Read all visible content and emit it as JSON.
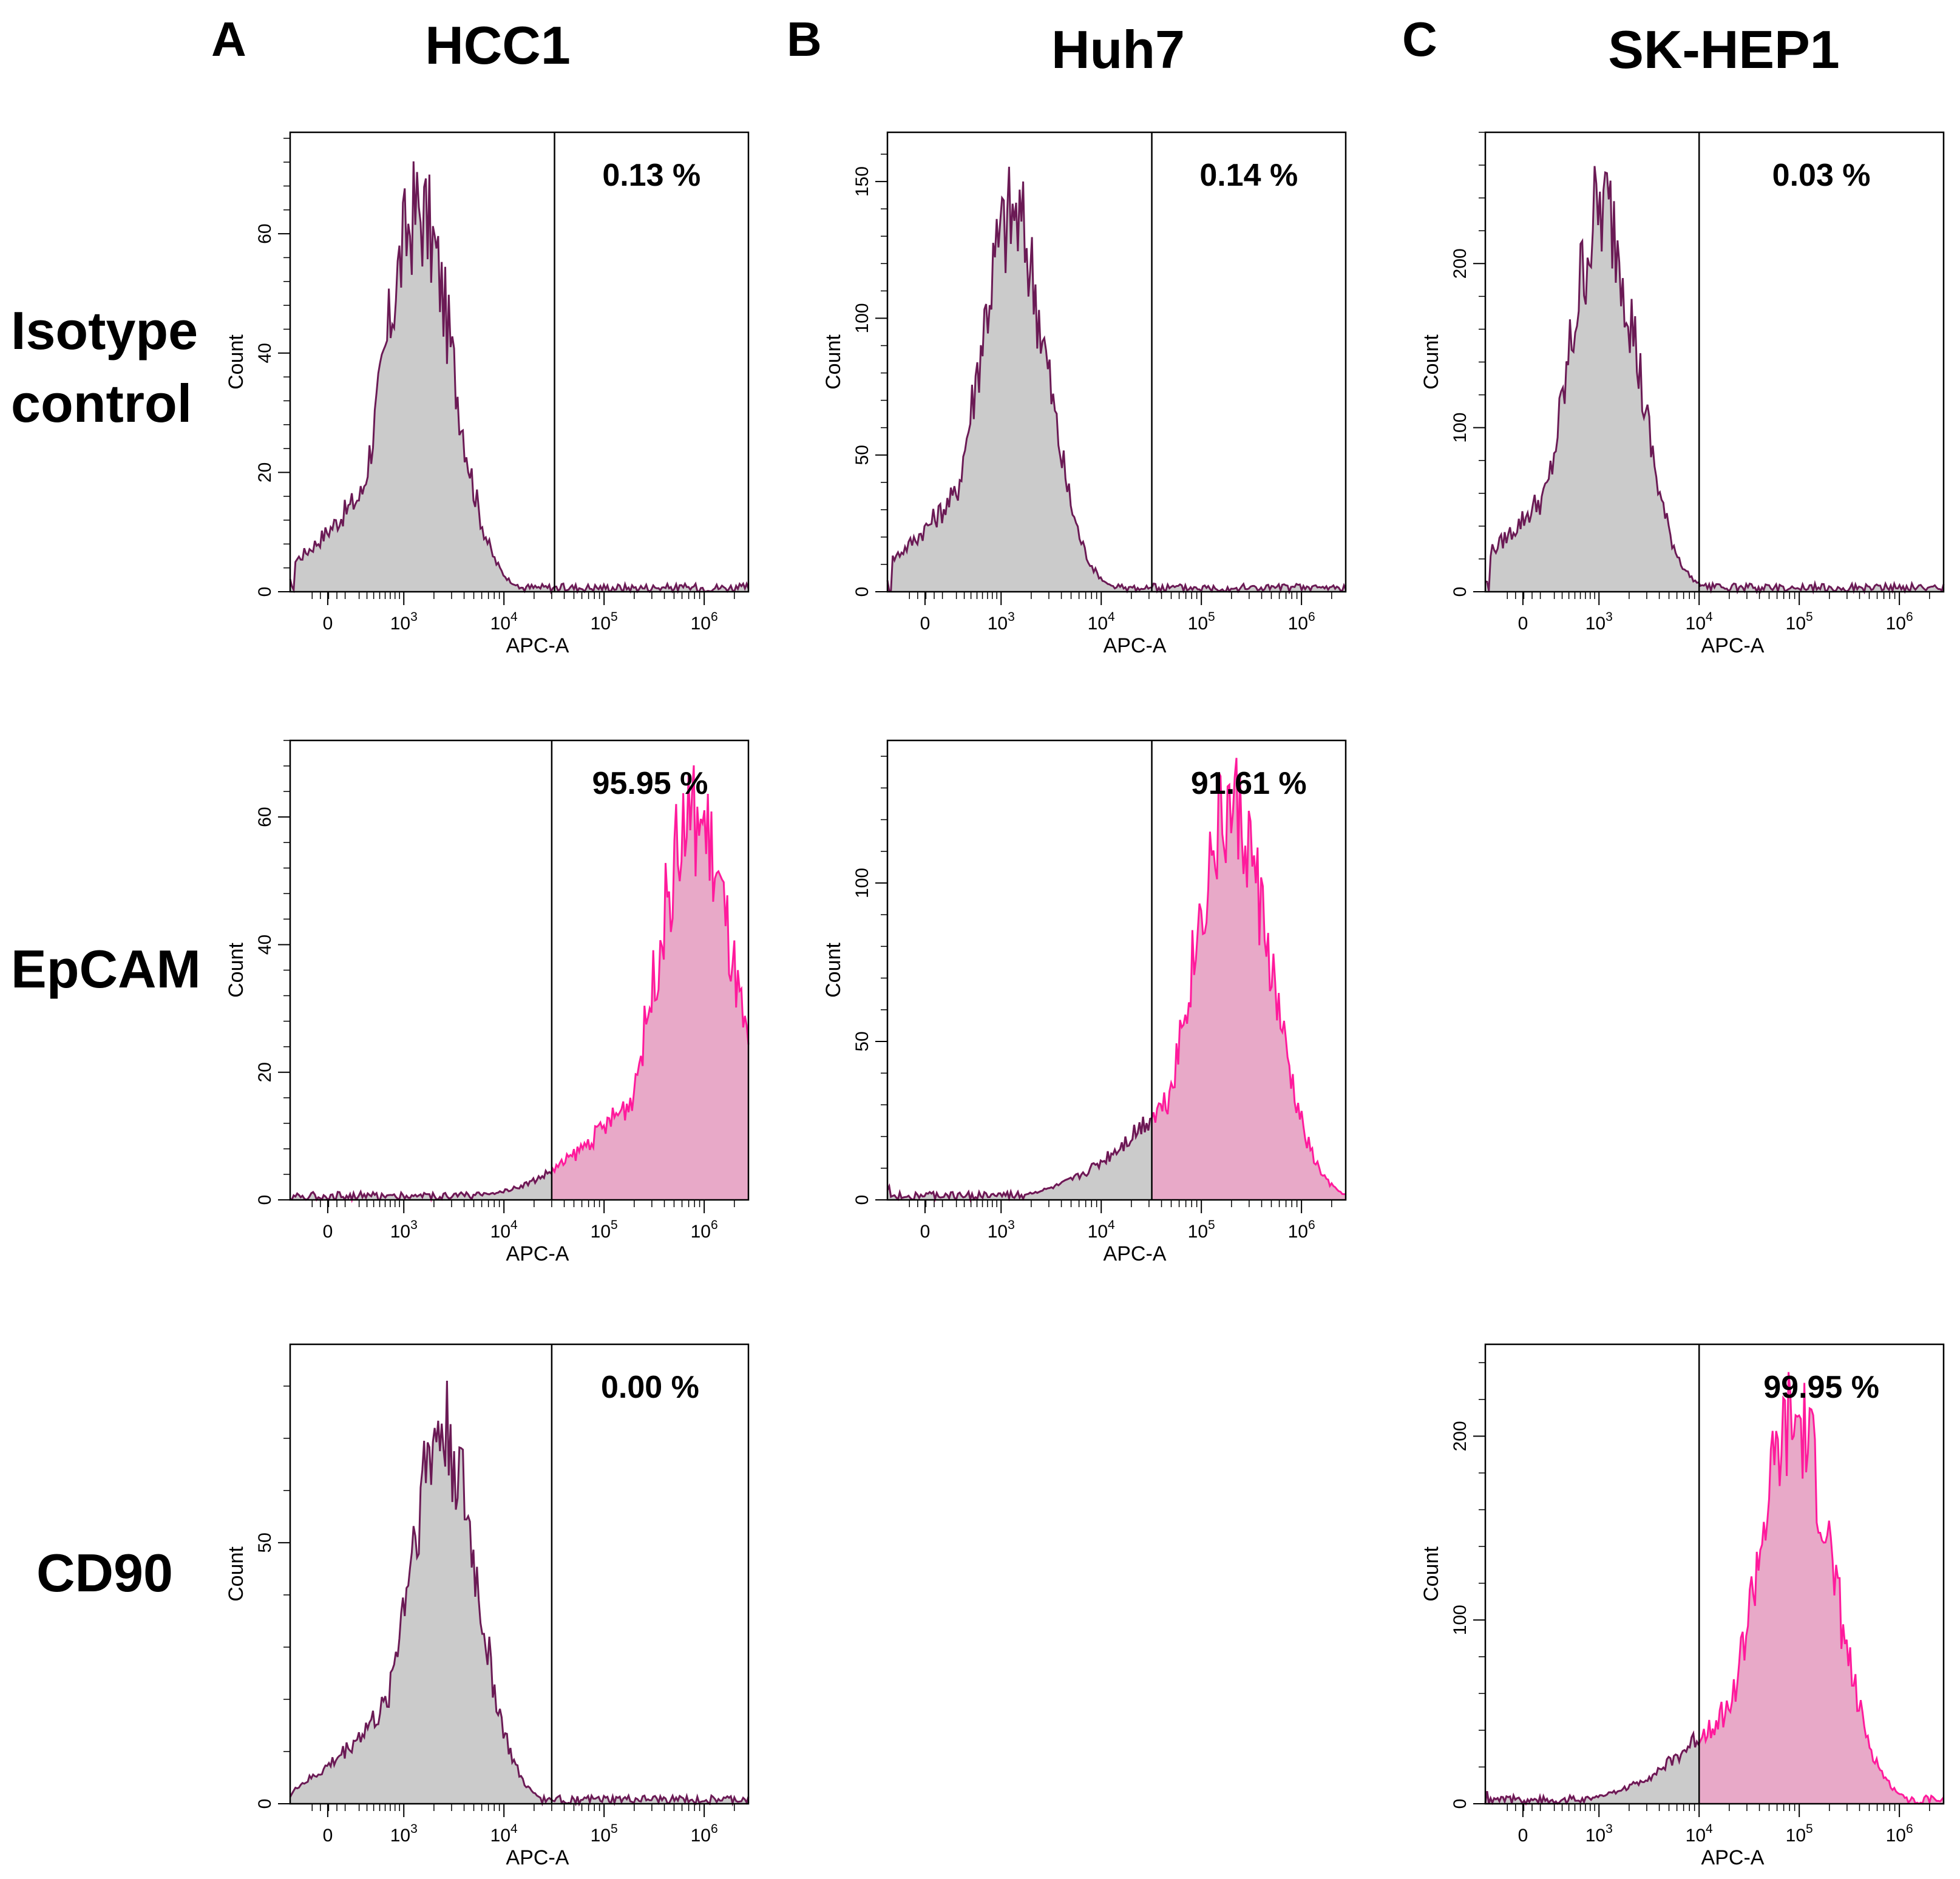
{
  "columns": [
    {
      "letter": "A",
      "title": "HCC1"
    },
    {
      "letter": "B",
      "title": "Huh7"
    },
    {
      "letter": "C",
      "title": "SK-HEP1"
    }
  ],
  "rows": [
    {
      "label_lines": [
        "Isotype",
        "control"
      ]
    },
    {
      "label_lines": [
        "EpCAM"
      ]
    },
    {
      "label_lines": [
        "CD90"
      ]
    }
  ],
  "colors": {
    "isotype_fill": "#cbcbcb",
    "isotype_line": "#6b1a55",
    "marker_fill": "#e8a9c8",
    "marker_line": "#ff1a9c"
  },
  "chart_data": [
    {
      "id": "A-isotype",
      "type": "area",
      "col": 0,
      "row": 0,
      "xlabel": "APC-A",
      "ylabel": "Count",
      "xticks": [
        "0",
        "10^3",
        "10^4",
        "10^5",
        "10^6"
      ],
      "ylim": [
        0,
        77
      ],
      "yticks": [
        0,
        20,
        40,
        60
      ],
      "gate": "3.2e4",
      "percent_label": "0.13 %",
      "series": [
        {
          "name": "isotype",
          "peak_x": "1.4e3",
          "peak_count": 65,
          "style": "isotype"
        }
      ]
    },
    {
      "id": "B-isotype",
      "type": "area",
      "col": 1,
      "row": 0,
      "xlabel": "APC-A",
      "ylabel": "Count",
      "xticks": [
        "0",
        "10^3",
        "10^4",
        "10^5",
        "10^6"
      ],
      "ylim": [
        0,
        168
      ],
      "yticks": [
        0,
        50,
        100,
        150
      ],
      "gate": "3.2e4",
      "percent_label": "0.14 %",
      "series": [
        {
          "name": "isotype",
          "peak_x": "1.3e3",
          "peak_count": 140,
          "style": "isotype"
        }
      ]
    },
    {
      "id": "C-isotype",
      "type": "area",
      "col": 2,
      "row": 0,
      "xlabel": "APC-A",
      "ylabel": "Count",
      "xticks": [
        "0",
        "10^3",
        "10^4",
        "10^5",
        "10^6"
      ],
      "ylim": [
        0,
        280
      ],
      "yticks": [
        0,
        100,
        200
      ],
      "gate": "1.0e4",
      "percent_label": "0.03 %",
      "series": [
        {
          "name": "isotype",
          "peak_x": "1.1e3",
          "peak_count": 238,
          "style": "isotype"
        }
      ]
    },
    {
      "id": "A-epcam",
      "type": "area",
      "col": 0,
      "row": 1,
      "xlabel": "APC-A",
      "ylabel": "Count",
      "xticks": [
        "0",
        "10^3",
        "10^4",
        "10^5",
        "10^6"
      ],
      "ylim": [
        0,
        72
      ],
      "yticks": [
        0,
        20,
        40,
        60
      ],
      "gate": "3.0e4",
      "percent_label": "95.95 %",
      "series": [
        {
          "name": "EpCAM",
          "peak_x": "8.0e5",
          "peak_count": 61,
          "style": "marker"
        }
      ]
    },
    {
      "id": "B-epcam",
      "type": "area",
      "col": 1,
      "row": 1,
      "xlabel": "APC-A",
      "ylabel": "Count",
      "xticks": [
        "0",
        "10^3",
        "10^4",
        "10^5",
        "10^6"
      ],
      "ylim": [
        0,
        145
      ],
      "yticks": [
        0,
        50,
        100
      ],
      "gate": "3.2e4",
      "percent_label": "91.61 %",
      "series": [
        {
          "name": "EpCAM",
          "peak_x": "2.0e5",
          "peak_count": 125,
          "style": "marker"
        }
      ]
    },
    {
      "id": "A-cd90",
      "type": "area",
      "col": 0,
      "row": 2,
      "xlabel": "APC-A",
      "ylabel": "Count",
      "xticks": [
        "0",
        "10^3",
        "10^4",
        "10^5",
        "10^6"
      ],
      "ylim": [
        0,
        88
      ],
      "yticks": [
        0,
        50
      ],
      "gate": "3.0e4",
      "percent_label": "0.00 %",
      "series": [
        {
          "name": "CD90",
          "peak_x": "2.4e3",
          "peak_count": 73,
          "style": "isotype"
        }
      ]
    },
    {
      "id": "C-cd90",
      "type": "area",
      "col": 2,
      "row": 2,
      "xlabel": "APC-A",
      "ylabel": "Count",
      "xticks": [
        "0",
        "10^3",
        "10^4",
        "10^5",
        "10^6"
      ],
      "ylim": [
        0,
        250
      ],
      "yticks": [
        0,
        100,
        200
      ],
      "gate": "1.0e4",
      "percent_label": "99.95 %",
      "series": [
        {
          "name": "CD90",
          "peak_x": "9.0e4",
          "peak_count": 210,
          "style": "marker"
        }
      ]
    }
  ]
}
